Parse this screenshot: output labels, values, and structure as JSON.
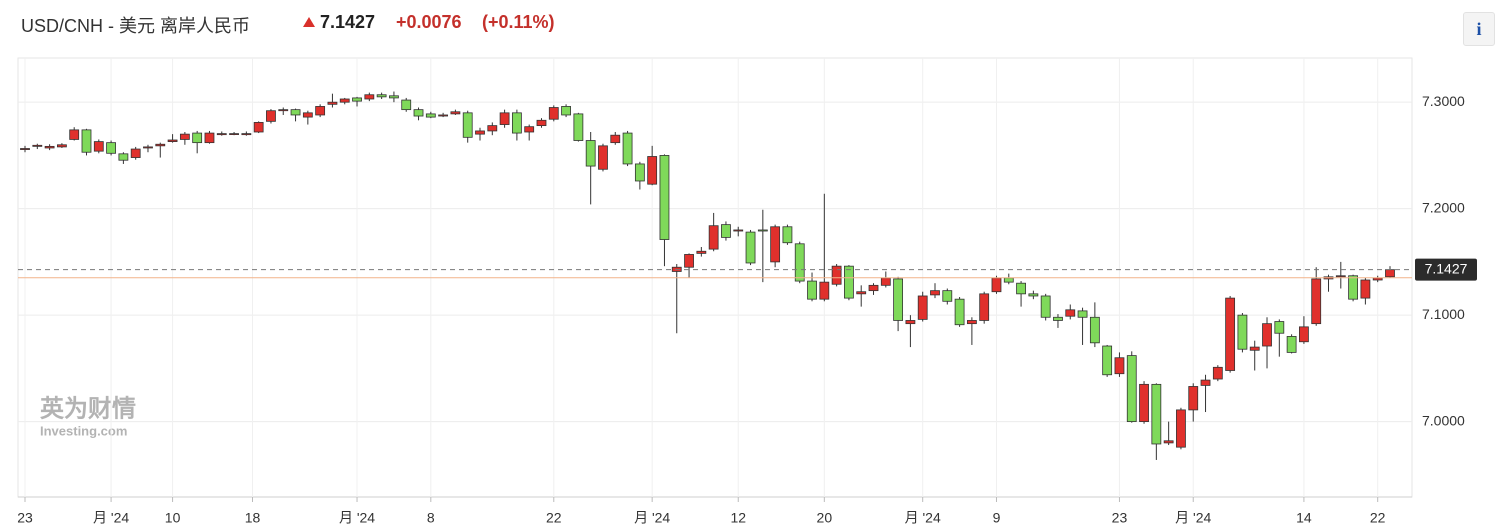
{
  "header": {
    "title": "USD/CNH - 美元 离岸人民币",
    "price": "7.1427",
    "change": "+0.0076",
    "change_pct": "(+0.11%)",
    "info": "i"
  },
  "chart_data": {
    "type": "candlestick",
    "watermark": {
      "cn": "英为财情",
      "en": "Investing.com"
    },
    "up_color": "#e0302c",
    "down_color": "#7fd95a",
    "grid": true,
    "xlim": [
      -0.57,
      112.79
    ],
    "ylim": [
      6.9292,
      7.3415
    ],
    "yticks": [
      {
        "value": 7.0,
        "label": "7.0000"
      },
      {
        "value": 7.1,
        "label": "7.1000"
      },
      {
        "value": 7.2,
        "label": "7.2000"
      },
      {
        "value": 7.3,
        "label": "7.3000"
      }
    ],
    "xticks": [
      {
        "value": 0,
        "label": "23"
      },
      {
        "value": 7,
        "label": "月 '24"
      },
      {
        "value": 12,
        "label": "10"
      },
      {
        "value": 18.5,
        "label": "18"
      },
      {
        "value": 27,
        "label": "月 '24"
      },
      {
        "value": 33,
        "label": "8"
      },
      {
        "value": 43,
        "label": "22"
      },
      {
        "value": 51,
        "label": "月 '24"
      },
      {
        "value": 58,
        "label": "12"
      },
      {
        "value": 65,
        "label": "20"
      },
      {
        "value": 73,
        "label": "月 '24"
      },
      {
        "value": 79,
        "label": "9"
      },
      {
        "value": 89,
        "label": "23"
      },
      {
        "value": 95,
        "label": "月 '24"
      },
      {
        "value": 104,
        "label": "14"
      },
      {
        "value": 110,
        "label": "22"
      }
    ],
    "last_price": 7.1427,
    "prev_close": 7.1351,
    "open": [
      7.2555,
      7.2585,
      7.257,
      7.258,
      7.265,
      7.274,
      7.254,
      7.262,
      7.2515,
      7.248,
      7.257,
      7.259,
      7.263,
      7.265,
      7.271,
      7.262,
      7.2695,
      7.27,
      7.2695,
      7.272,
      7.282,
      7.292,
      7.293,
      7.286,
      7.288,
      7.298,
      7.3,
      7.304,
      7.303,
      7.307,
      7.306,
      7.302,
      7.293,
      7.289,
      7.287,
      7.289,
      7.29,
      7.27,
      7.273,
      7.279,
      7.29,
      7.272,
      7.278,
      7.284,
      7.296,
      7.289,
      7.264,
      7.237,
      7.262,
      7.271,
      7.242,
      7.223,
      7.25,
      7.141,
      7.145,
      7.158,
      7.162,
      7.185,
      7.179,
      7.178,
      7.18,
      7.15,
      7.183,
      7.167,
      7.132,
      7.115,
      7.129,
      7.146,
      7.12,
      7.123,
      7.128,
      7.134,
      7.092,
      7.096,
      7.119,
      7.123,
      7.115,
      7.092,
      7.095,
      7.122,
      7.135,
      7.13,
      7.12,
      7.118,
      7.098,
      7.099,
      7.104,
      7.098,
      7.071,
      7.045,
      7.062,
      7.0,
      7.035,
      6.98,
      6.976,
      7.011,
      7.034,
      7.04,
      7.048,
      7.1,
      7.067,
      7.071,
      7.094,
      7.08,
      7.075,
      7.092,
      7.134,
      7.136,
      7.137,
      7.116,
      7.133,
      7.136
    ],
    "high": [
      7.259,
      7.261,
      7.2605,
      7.2615,
      7.2765,
      7.275,
      7.265,
      7.264,
      7.253,
      7.258,
      7.26,
      7.262,
      7.27,
      7.272,
      7.273,
      7.273,
      7.2725,
      7.272,
      7.2725,
      7.282,
      7.2935,
      7.295,
      7.294,
      7.292,
      7.298,
      7.308,
      7.304,
      7.305,
      7.309,
      7.309,
      7.31,
      7.304,
      7.295,
      7.291,
      7.29,
      7.293,
      7.292,
      7.276,
      7.281,
      7.293,
      7.293,
      7.279,
      7.285,
      7.297,
      7.298,
      7.29,
      7.272,
      7.261,
      7.272,
      7.273,
      7.244,
      7.259,
      7.251,
      7.148,
      7.158,
      7.164,
      7.196,
      7.188,
      7.183,
      7.18,
      7.199,
      7.185,
      7.185,
      7.169,
      7.14,
      7.214,
      7.148,
      7.147,
      7.128,
      7.13,
      7.141,
      7.136,
      7.1,
      7.122,
      7.13,
      7.125,
      7.117,
      7.098,
      7.122,
      7.137,
      7.139,
      7.132,
      7.123,
      7.12,
      7.101,
      7.11,
      7.107,
      7.112,
      7.072,
      7.065,
      7.066,
      7.038,
      7.036,
      7.0,
      7.013,
      7.036,
      7.044,
      7.053,
      7.118,
      7.102,
      7.076,
      7.098,
      7.096,
      7.082,
      7.099,
      7.145,
      7.138,
      7.15,
      7.138,
      7.135,
      7.137,
      7.146
    ],
    "low": [
      7.253,
      7.256,
      7.255,
      7.257,
      7.264,
      7.25,
      7.252,
      7.25,
      7.242,
      7.246,
      7.253,
      7.248,
      7.262,
      7.26,
      7.252,
      7.261,
      7.2685,
      7.269,
      7.2685,
      7.271,
      7.28,
      7.288,
      7.282,
      7.279,
      7.286,
      7.295,
      7.298,
      7.296,
      7.301,
      7.303,
      7.3,
      7.291,
      7.283,
      7.285,
      7.286,
      7.288,
      7.262,
      7.264,
      7.269,
      7.276,
      7.264,
      7.264,
      7.276,
      7.282,
      7.286,
      7.263,
      7.204,
      7.235,
      7.26,
      7.24,
      7.218,
      7.222,
      7.146,
      7.083,
      7.135,
      7.155,
      7.16,
      7.17,
      7.174,
      7.147,
      7.131,
      7.145,
      7.166,
      7.13,
      7.113,
      7.113,
      7.127,
      7.114,
      7.108,
      7.119,
      7.126,
      7.085,
      7.07,
      7.094,
      7.116,
      7.11,
      7.089,
      7.072,
      7.092,
      7.12,
      7.129,
      7.108,
      7.115,
      7.095,
      7.088,
      7.096,
      7.072,
      7.07,
      7.042,
      7.042,
      6.999,
      6.998,
      6.964,
      6.978,
      6.974,
      7.0,
      7.009,
      7.038,
      7.046,
      7.065,
      7.048,
      7.05,
      7.061,
      7.064,
      7.073,
      7.09,
      7.122,
      7.125,
      7.113,
      7.11,
      7.131,
      7.135
    ],
    "close": [
      7.2565,
      7.2595,
      7.2585,
      7.26,
      7.274,
      7.253,
      7.263,
      7.252,
      7.2455,
      7.256,
      7.258,
      7.2605,
      7.2645,
      7.27,
      7.262,
      7.271,
      7.2705,
      7.2705,
      7.2705,
      7.281,
      7.292,
      7.293,
      7.288,
      7.29,
      7.296,
      7.3,
      7.303,
      7.301,
      7.307,
      7.305,
      7.304,
      7.293,
      7.287,
      7.286,
      7.288,
      7.291,
      7.267,
      7.273,
      7.278,
      7.29,
      7.271,
      7.277,
      7.283,
      7.295,
      7.288,
      7.264,
      7.24,
      7.259,
      7.269,
      7.242,
      7.226,
      7.249,
      7.171,
      7.145,
      7.157,
      7.16,
      7.184,
      7.173,
      7.18,
      7.149,
      7.179,
      7.183,
      7.168,
      7.132,
      7.115,
      7.131,
      7.146,
      7.116,
      7.122,
      7.128,
      7.135,
      7.095,
      7.095,
      7.118,
      7.123,
      7.113,
      7.091,
      7.095,
      7.12,
      7.135,
      7.131,
      7.12,
      7.118,
      7.098,
      7.095,
      7.105,
      7.098,
      7.074,
      7.044,
      7.06,
      7.0,
      7.035,
      6.979,
      6.982,
      7.011,
      7.033,
      7.039,
      7.051,
      7.116,
      7.068,
      7.07,
      7.092,
      7.083,
      7.065,
      7.089,
      7.134,
      7.136,
      7.137,
      7.115,
      7.133,
      7.135,
      7.1427
    ]
  }
}
